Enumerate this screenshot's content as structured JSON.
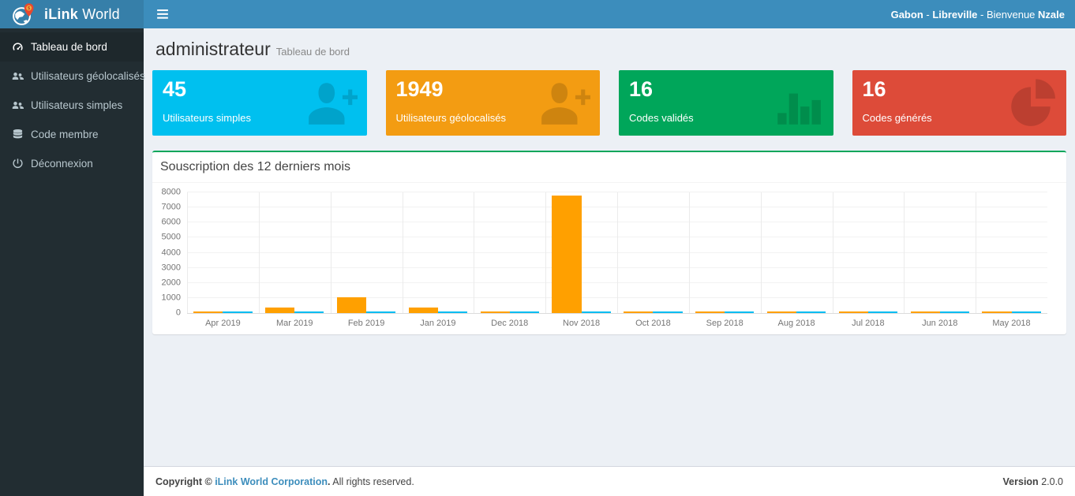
{
  "header": {
    "brand_bold": "iLink",
    "brand_rest": " World",
    "greeting": {
      "country": "Gabon",
      "sep1": " - ",
      "city": "Libreville",
      "sep2": " - ",
      "welcome": "Bienvenue ",
      "name": "Nzale"
    }
  },
  "sidebar": {
    "items": [
      {
        "label": "Tableau de bord",
        "icon": "dashboard-icon",
        "active": true
      },
      {
        "label": "Utilisateurs géolocalisés",
        "icon": "users-icon",
        "active": false
      },
      {
        "label": "Utilisateurs simples",
        "icon": "users-icon",
        "active": false
      },
      {
        "label": "Code membre",
        "icon": "database-icon",
        "active": false
      },
      {
        "label": "Déconnexion",
        "icon": "power-icon",
        "active": false
      }
    ]
  },
  "page": {
    "title": "administrateur",
    "subtitle": "Tableau de bord"
  },
  "stat_cards": [
    {
      "value": "45",
      "label": "Utilisateurs simples",
      "color": "#00c0ef",
      "icon": "user-plus-icon"
    },
    {
      "value": "1949",
      "label": "Utilisateurs géolocalisés",
      "color": "#f39c12",
      "icon": "user-plus-icon"
    },
    {
      "value": "16",
      "label": "Codes validés",
      "color": "#00a65a",
      "icon": "bar-chart-icon"
    },
    {
      "value": "16",
      "label": "Codes générés",
      "color": "#dd4b39",
      "icon": "pie-chart-icon"
    }
  ],
  "chart_panel": {
    "title": "Souscription des 12 derniers mois"
  },
  "chart_data": {
    "type": "bar",
    "title": "Souscription des 12 derniers mois",
    "categories": [
      "Apr 2019",
      "Mar 2019",
      "Feb 2019",
      "Jan 2019",
      "Dec 2018",
      "Nov 2018",
      "Oct 2018",
      "Sep 2018",
      "Aug 2018",
      "Jul 2018",
      "Jun 2018",
      "May 2018"
    ],
    "series": [
      {
        "name": "orange",
        "color": "#ffa000",
        "values": [
          80,
          370,
          1050,
          350,
          60,
          7800,
          60,
          60,
          60,
          60,
          60,
          60
        ]
      },
      {
        "name": "blue",
        "color": "#00bcf2",
        "values": [
          60,
          60,
          60,
          60,
          60,
          60,
          60,
          60,
          60,
          60,
          60,
          60
        ]
      }
    ],
    "xlabel": "",
    "ylabel": "",
    "ylim": [
      0,
      8000
    ],
    "ytick_step": 1000,
    "grid": true,
    "legend": "none"
  },
  "footer": {
    "copyright_prefix": "Copyright © ",
    "company": "iLink World Corporation",
    "period": ".",
    "rights": " All rights reserved.",
    "version_label": "Version",
    "version": "2.0.0"
  }
}
